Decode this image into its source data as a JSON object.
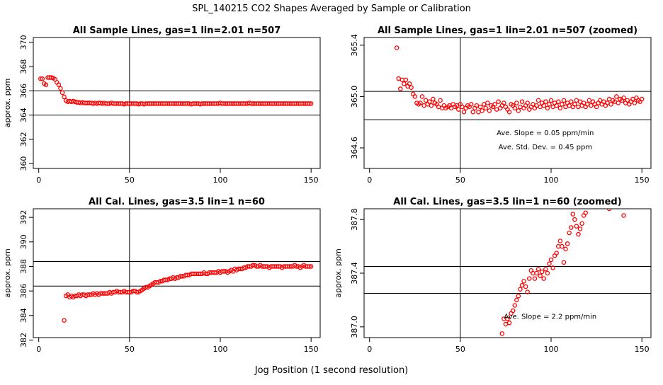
{
  "figure": {
    "title": "SPL_140215  CO2 Shapes Averaged by Sample or Calibration",
    "xlabel": "Jog Position (1 second resolution)"
  },
  "chart_data": [
    {
      "type": "scatter",
      "title": "All Sample Lines, gas=1 lin=2.01 n=507",
      "ylabel": "approx. ppm",
      "xlim": [
        -3,
        155
      ],
      "ylim": [
        359.6,
        370.4
      ],
      "xticks": [
        0,
        50,
        100,
        150
      ],
      "yticks": [
        360,
        362,
        364,
        366,
        368,
        370
      ],
      "vline": 50,
      "hlines": [
        364.0,
        366.0
      ],
      "color": "#ff0000",
      "x": [
        1,
        2,
        3,
        4,
        5,
        6,
        7,
        8,
        9,
        10,
        11,
        12,
        13,
        14,
        15,
        16,
        17,
        18,
        19,
        20,
        21,
        22,
        23,
        24,
        25,
        26,
        27,
        28,
        29,
        30,
        31,
        32,
        33,
        34,
        35,
        36,
        37,
        38,
        39,
        40,
        41,
        42,
        43,
        44,
        45,
        46,
        47,
        48,
        49,
        50,
        51,
        52,
        53,
        54,
        55,
        56,
        57,
        58,
        59,
        60,
        61,
        62,
        63,
        64,
        65,
        66,
        67,
        68,
        69,
        70,
        71,
        72,
        73,
        74,
        75,
        76,
        77,
        78,
        79,
        80,
        81,
        82,
        83,
        84,
        85,
        86,
        87,
        88,
        89,
        90,
        91,
        92,
        93,
        94,
        95,
        96,
        97,
        98,
        99,
        100,
        101,
        102,
        103,
        104,
        105,
        106,
        107,
        108,
        109,
        110,
        111,
        112,
        113,
        114,
        115,
        116,
        117,
        118,
        119,
        120,
        121,
        122,
        123,
        124,
        125,
        126,
        127,
        128,
        129,
        130,
        131,
        132,
        133,
        134,
        135,
        136,
        137,
        138,
        139,
        140,
        141,
        142,
        143,
        144,
        145,
        146,
        147,
        148,
        149,
        150
      ],
      "y": [
        367.0,
        367.0,
        366.6,
        366.5,
        367.1,
        367.1,
        367.1,
        367.05,
        366.95,
        366.7,
        366.5,
        366.2,
        365.85,
        365.5,
        365.2,
        365.1,
        365.15,
        365.1,
        365.15,
        365.1,
        365.05,
        365.05,
        365.0,
        365.05,
        365.0,
        365.0,
        365.0,
        365.0,
        365.0,
        364.95,
        365.0,
        364.95,
        365.0,
        365.0,
        364.95,
        365.0,
        364.95,
        364.95,
        364.95,
        365.0,
        364.95,
        364.95,
        364.95,
        364.95,
        364.95,
        364.95,
        364.9,
        364.95,
        364.95,
        364.95,
        364.95,
        364.95,
        364.95,
        364.95,
        364.9,
        364.95,
        364.95,
        364.9,
        364.95,
        364.95,
        364.95,
        364.95,
        364.95,
        364.95,
        364.95,
        364.95,
        364.95,
        364.95,
        364.95,
        364.95,
        364.95,
        364.95,
        364.95,
        364.95,
        364.95,
        364.95,
        364.95,
        364.95,
        364.95,
        364.95,
        364.95,
        364.95,
        364.95,
        364.9,
        364.95,
        364.95,
        364.95,
        364.95,
        364.9,
        364.95,
        364.95,
        364.95,
        364.95,
        364.95,
        364.95,
        364.95,
        364.95,
        364.95,
        364.95,
        365.0,
        364.95,
        364.95,
        364.95,
        364.95,
        364.95,
        364.95,
        364.95,
        364.95,
        364.95,
        364.95,
        364.95,
        364.95,
        364.95,
        364.95,
        364.95,
        365.0,
        364.95,
        364.95,
        364.95,
        364.95,
        364.95,
        364.95,
        364.95,
        364.95,
        364.95,
        364.95,
        364.95,
        364.95,
        364.95,
        364.95,
        364.95,
        364.95,
        364.95,
        364.95,
        364.95,
        364.95,
        364.95,
        364.95,
        364.95,
        364.95,
        364.95,
        364.95,
        364.95,
        364.95,
        364.95,
        364.95,
        364.95,
        364.95,
        364.95,
        364.95
      ]
    },
    {
      "type": "scatter",
      "title": "All Sample Lines, gas=1 lin=2.01 n=507 (zoomed)",
      "ylabel": "",
      "xlim": [
        -3,
        155
      ],
      "ylim": [
        364.44,
        365.46
      ],
      "xticks": [
        0,
        50,
        100,
        150
      ],
      "yticks": [
        364.6,
        365.0,
        365.4
      ],
      "vline": 50,
      "hlines": [
        364.82,
        365.04
      ],
      "color": "#ff0000",
      "annotations": [
        {
          "text": "Ave. Slope =  0.05  ppm/min",
          "x": 70,
          "y": 364.7
        },
        {
          "text": "Ave. Std. Dev. =  0.45  ppm",
          "x": 71,
          "y": 364.59
        }
      ],
      "x": [
        15,
        16,
        17,
        18,
        19,
        20,
        21,
        22,
        23,
        24,
        25,
        26,
        27,
        28,
        29,
        30,
        31,
        32,
        33,
        34,
        35,
        36,
        37,
        38,
        39,
        40,
        41,
        42,
        43,
        44,
        45,
        46,
        47,
        48,
        49,
        50,
        51,
        52,
        53,
        54,
        55,
        56,
        57,
        58,
        59,
        60,
        61,
        62,
        63,
        64,
        65,
        66,
        67,
        68,
        69,
        70,
        71,
        72,
        73,
        74,
        75,
        76,
        77,
        78,
        79,
        80,
        81,
        82,
        83,
        84,
        85,
        86,
        87,
        88,
        89,
        90,
        91,
        92,
        93,
        94,
        95,
        96,
        97,
        98,
        99,
        100,
        101,
        102,
        103,
        104,
        105,
        106,
        107,
        108,
        109,
        110,
        111,
        112,
        113,
        114,
        115,
        116,
        117,
        118,
        119,
        120,
        121,
        122,
        123,
        124,
        125,
        126,
        127,
        128,
        129,
        130,
        131,
        132,
        133,
        134,
        135,
        136,
        137,
        138,
        139,
        140,
        141,
        142,
        143,
        144,
        145,
        146,
        147,
        148,
        149,
        150
      ],
      "y": [
        365.38,
        365.14,
        365.06,
        365.13,
        365.1,
        365.13,
        365.08,
        365.1,
        365.07,
        365.02,
        365.0,
        364.95,
        364.94,
        364.95,
        365.0,
        364.93,
        364.97,
        364.94,
        364.96,
        364.93,
        364.98,
        364.95,
        364.94,
        364.92,
        364.97,
        364.91,
        364.93,
        364.91,
        364.92,
        364.93,
        364.91,
        364.94,
        364.92,
        364.93,
        364.9,
        364.94,
        364.92,
        364.88,
        364.91,
        364.93,
        364.92,
        364.94,
        364.88,
        364.91,
        364.93,
        364.88,
        364.92,
        364.89,
        364.94,
        364.91,
        364.95,
        364.89,
        364.93,
        364.92,
        364.94,
        364.9,
        364.96,
        364.91,
        364.93,
        364.95,
        364.92,
        364.9,
        364.88,
        364.94,
        364.93,
        364.91,
        364.95,
        364.89,
        364.92,
        364.96,
        364.91,
        364.93,
        364.95,
        364.9,
        364.92,
        364.94,
        364.91,
        364.93,
        364.97,
        364.92,
        364.95,
        364.93,
        364.96,
        364.91,
        364.94,
        364.97,
        364.92,
        364.95,
        364.93,
        364.96,
        364.91,
        364.94,
        364.97,
        364.92,
        364.95,
        364.93,
        364.96,
        364.92,
        364.94,
        364.97,
        364.92,
        364.96,
        364.93,
        364.95,
        364.92,
        364.94,
        364.97,
        364.93,
        364.96,
        364.94,
        364.92,
        364.95,
        364.97,
        364.94,
        364.96,
        364.93,
        364.95,
        364.98,
        364.94,
        364.97,
        364.96,
        365.0,
        364.95,
        364.98,
        364.97,
        364.99,
        364.95,
        364.97,
        364.94,
        364.96,
        364.98,
        364.95,
        364.99,
        364.97,
        364.96,
        364.98
      ]
    },
    {
      "type": "scatter",
      "title": "All Cal. Lines, gas=3.5 lin=1 n=60",
      "ylabel": "approx. ppm",
      "xlim": [
        -3,
        155
      ],
      "ylim": [
        382.2,
        392.7
      ],
      "xticks": [
        0,
        50,
        100,
        150
      ],
      "yticks": [
        382,
        384,
        386,
        388,
        390,
        392
      ],
      "vline": 50,
      "hlines": [
        386.4,
        388.4
      ],
      "color": "#ff0000",
      "x": [
        14,
        15,
        16,
        17,
        18,
        19,
        20,
        21,
        22,
        23,
        24,
        25,
        26,
        27,
        28,
        29,
        30,
        31,
        32,
        33,
        34,
        35,
        36,
        37,
        38,
        39,
        40,
        41,
        42,
        43,
        44,
        45,
        46,
        47,
        48,
        49,
        50,
        51,
        52,
        53,
        54,
        55,
        56,
        57,
        58,
        59,
        60,
        61,
        62,
        63,
        64,
        65,
        66,
        67,
        68,
        69,
        70,
        71,
        72,
        73,
        74,
        75,
        76,
        77,
        78,
        79,
        80,
        81,
        82,
        83,
        84,
        85,
        86,
        87,
        88,
        89,
        90,
        91,
        92,
        93,
        94,
        95,
        96,
        97,
        98,
        99,
        100,
        101,
        102,
        103,
        104,
        105,
        106,
        107,
        108,
        109,
        110,
        111,
        112,
        113,
        114,
        115,
        116,
        117,
        118,
        119,
        120,
        121,
        122,
        123,
        124,
        125,
        126,
        127,
        128,
        129,
        130,
        131,
        132,
        133,
        134,
        135,
        136,
        137,
        138,
        139,
        140,
        141,
        142,
        143,
        144,
        145,
        146,
        147,
        148,
        149,
        150
      ],
      "y": [
        383.6,
        385.6,
        385.7,
        385.5,
        385.6,
        385.5,
        385.6,
        385.6,
        385.7,
        385.6,
        385.7,
        385.7,
        385.6,
        385.7,
        385.7,
        385.7,
        385.8,
        385.7,
        385.8,
        385.7,
        385.8,
        385.8,
        385.8,
        385.8,
        385.8,
        385.9,
        385.8,
        385.9,
        385.9,
        386.0,
        385.9,
        385.9,
        385.9,
        386.0,
        385.9,
        385.9,
        385.9,
        385.9,
        386.0,
        386.0,
        385.9,
        385.9,
        386.0,
        386.1,
        386.2,
        386.3,
        386.3,
        386.4,
        386.5,
        386.6,
        386.7,
        386.7,
        386.7,
        386.8,
        386.8,
        386.9,
        386.9,
        386.9,
        387.0,
        387.0,
        387.1,
        387.0,
        387.1,
        387.1,
        387.2,
        387.2,
        387.2,
        387.3,
        387.3,
        387.3,
        387.4,
        387.4,
        387.4,
        387.4,
        387.4,
        387.4,
        387.4,
        387.5,
        387.4,
        387.4,
        387.5,
        387.5,
        387.5,
        387.5,
        387.5,
        387.6,
        387.5,
        387.6,
        387.6,
        387.6,
        387.5,
        387.6,
        387.7,
        387.6,
        387.8,
        387.7,
        387.8,
        387.8,
        387.8,
        387.9,
        387.9,
        388.0,
        388.0,
        388.0,
        388.1,
        388.1,
        388.0,
        388.0,
        388.1,
        388.0,
        388.0,
        388.0,
        388.0,
        387.9,
        388.0,
        388.0,
        388.0,
        388.0,
        388.0,
        388.0,
        387.9,
        388.0,
        388.0,
        388.0,
        388.0,
        388.0,
        388.0,
        388.1,
        388.0,
        388.0,
        387.9,
        388.0,
        388.1,
        388.0,
        388.0,
        388.0,
        388.0
      ]
    },
    {
      "type": "scatter",
      "title": "All Cal. Lines, gas=3.5 lin=1 n=60 (zoomed)",
      "ylabel": "approx. ppm",
      "xlim": [
        -3,
        155
      ],
      "ylim": [
        386.92,
        387.88
      ],
      "xticks": [
        0,
        50,
        100,
        150
      ],
      "yticks": [
        387.0,
        387.4,
        387.8
      ],
      "vline": 50,
      "hlines": [
        387.25,
        387.45
      ],
      "color": "#ff0000",
      "annotations": [
        {
          "text": "Ave. Slope =  2.2  ppm/min",
          "x": 74,
          "y": 387.06
        }
      ],
      "x": [
        73,
        74,
        75,
        76,
        77,
        78,
        79,
        80,
        81,
        82,
        83,
        84,
        85,
        86,
        87,
        88,
        89,
        90,
        91,
        92,
        93,
        94,
        95,
        96,
        97,
        98,
        99,
        100,
        101,
        102,
        103,
        104,
        105,
        106,
        107,
        108,
        109,
        110,
        111,
        112,
        113,
        114,
        115,
        116,
        117,
        118,
        119,
        132,
        140
      ],
      "y": [
        386.95,
        387.06,
        387.02,
        387.06,
        387.03,
        387.1,
        387.12,
        387.16,
        387.2,
        387.23,
        387.28,
        387.31,
        387.34,
        387.3,
        387.26,
        387.36,
        387.42,
        387.4,
        387.36,
        387.4,
        387.43,
        387.38,
        387.41,
        387.36,
        387.43,
        387.4,
        387.47,
        387.5,
        387.44,
        387.53,
        387.55,
        387.6,
        387.64,
        387.6,
        387.48,
        387.58,
        387.62,
        387.7,
        387.74,
        387.84,
        387.8,
        387.75,
        387.69,
        387.73,
        387.77,
        387.83,
        387.85,
        387.88,
        387.83
      ]
    }
  ]
}
